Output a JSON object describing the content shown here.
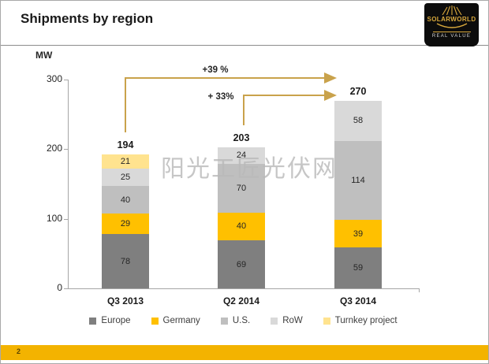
{
  "header": {
    "title": "Shipments by region"
  },
  "logo": {
    "brand": "SOLARWORLD",
    "tagline": "REAL VALUE"
  },
  "watermark_text": "阳光工匠光伏网",
  "footer": {
    "page_number": "2"
  },
  "chart_data": {
    "type": "bar",
    "stacked": true,
    "title": "Shipments by region",
    "unit_label": "MW",
    "ylabel": "MW",
    "ylim": [
      0,
      300
    ],
    "y_ticks": [
      0,
      100,
      200,
      300
    ],
    "grid": false,
    "legend_position": "bottom",
    "categories": [
      "Q3 2013",
      "Q2 2014",
      "Q3 2014"
    ],
    "totals": [
      194,
      203,
      270
    ],
    "series": [
      {
        "name": "Europe",
        "color": "#7f7f7f",
        "values": [
          78,
          69,
          59
        ]
      },
      {
        "name": "Germany",
        "color": "#ffc000",
        "values": [
          29,
          40,
          39
        ]
      },
      {
        "name": "U.S.",
        "color": "#bfbfbf",
        "values": [
          40,
          70,
          114
        ]
      },
      {
        "name": "RoW",
        "color": "#d9d9d9",
        "values": [
          25,
          24,
          58
        ]
      },
      {
        "name": "Turnkey project",
        "color": "#ffe38f",
        "values": [
          21,
          0,
          0
        ]
      }
    ],
    "annotations": [
      {
        "label": "+39 %",
        "from": "Q3 2013",
        "to": "Q3 2014"
      },
      {
        "label": "+ 33%",
        "from": "Q2 2014",
        "to": "Q3 2014"
      }
    ],
    "arrow_color": "#c9a24b",
    "axis_color": "#a6a6a6",
    "footer_bar_color": "#f3b300"
  }
}
